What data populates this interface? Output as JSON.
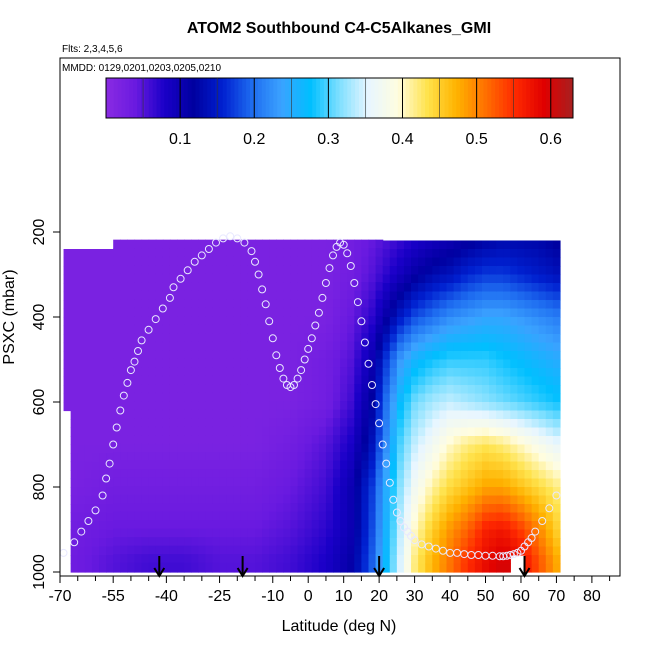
{
  "chart_data": {
    "type": "heatmap",
    "title": "ATOM2 Southbound C4-C5Alkanes_GMI",
    "flights_label": "Flts: 2,3,4,5,6",
    "mmdd_label": "MMDD: 0129,0201,0203,0205,0210",
    "xlabel": "Latitude (deg N)",
    "ylabel": "PSXC (mbar)",
    "xlim": [
      -70,
      85
    ],
    "ylim": [
      1000,
      0
    ],
    "x_tick_values": [
      -70,
      -55,
      -40,
      -25,
      -10,
      0,
      10,
      20,
      30,
      40,
      50,
      60,
      70,
      80
    ],
    "x_tick_labels": [
      "-70",
      "-55",
      "-40",
      "-25",
      "-10",
      "0",
      "10",
      "20",
      "30",
      "40",
      "50",
      "60",
      "70",
      "80"
    ],
    "x_minor_ticks": [
      -65,
      -60,
      -50,
      -45,
      -35,
      -30,
      -20,
      -15,
      -5,
      5,
      15,
      25,
      35,
      45,
      55,
      65,
      75,
      85
    ],
    "y_tick_values": [
      200,
      400,
      600,
      800,
      1000
    ],
    "y_tick_labels": [
      "200",
      "400",
      "600",
      "800",
      "1000"
    ],
    "colorbar": {
      "range": [
        0,
        0.63
      ],
      "tick_values": [
        0.1,
        0.2,
        0.3,
        0.4,
        0.5,
        0.6
      ],
      "tick_labels": [
        "0.1",
        "0.2",
        "0.3",
        "0.4",
        "0.5",
        "0.6"
      ],
      "colors": [
        "#8a2be2",
        "#6a1ae0",
        "#1a00c8",
        "#0000a0",
        "#0020d0",
        "#1e6cf0",
        "#3ba2ff",
        "#00bfff",
        "#7fdfff",
        "#e8f6ff",
        "#fffde0",
        "#ffe34d",
        "#ffb300",
        "#ff7000",
        "#ff2a00",
        "#e00000",
        "#a82020"
      ]
    },
    "grid": false,
    "field": {
      "latitudes": [
        -69,
        -55,
        -45,
        -35,
        -25,
        -15,
        -5,
        5,
        12,
        18,
        22,
        26,
        30,
        35,
        40,
        45,
        50,
        55,
        60,
        65,
        70
      ],
      "pressures": [
        200,
        300,
        400,
        500,
        600,
        700,
        800,
        900,
        975
      ],
      "values": [
        [
          0.02,
          0.02,
          0.02,
          0.02,
          0.02,
          0.02,
          0.02,
          0.02,
          0.03,
          0.04,
          0.05,
          0.06,
          0.07,
          0.08,
          0.09,
          0.1,
          0.11,
          0.12,
          0.12,
          0.12,
          0.11
        ],
        [
          0.02,
          0.02,
          0.02,
          0.02,
          0.02,
          0.02,
          0.02,
          0.02,
          0.03,
          0.05,
          0.07,
          0.09,
          0.11,
          0.13,
          0.14,
          0.16,
          0.17,
          0.17,
          0.16,
          0.15,
          0.14
        ],
        [
          0.02,
          0.02,
          0.02,
          0.02,
          0.02,
          0.02,
          0.02,
          0.02,
          0.04,
          0.07,
          0.11,
          0.15,
          0.18,
          0.2,
          0.22,
          0.23,
          0.24,
          0.24,
          0.23,
          0.22,
          0.21
        ],
        [
          0.02,
          0.02,
          0.02,
          0.02,
          0.02,
          0.02,
          0.02,
          0.03,
          0.05,
          0.1,
          0.17,
          0.23,
          0.26,
          0.28,
          0.29,
          0.29,
          0.29,
          0.28,
          0.27,
          0.26,
          0.25
        ],
        [
          0.02,
          0.02,
          0.02,
          0.02,
          0.02,
          0.02,
          0.02,
          0.03,
          0.06,
          0.12,
          0.2,
          0.27,
          0.31,
          0.33,
          0.34,
          0.33,
          0.32,
          0.31,
          0.3,
          0.29,
          0.28
        ],
        [
          0.02,
          0.02,
          0.02,
          0.02,
          0.02,
          0.02,
          0.03,
          0.05,
          0.08,
          0.14,
          0.22,
          0.3,
          0.34,
          0.37,
          0.4,
          0.42,
          0.43,
          0.42,
          0.4,
          0.38,
          0.36
        ],
        [
          0.02,
          0.03,
          0.03,
          0.03,
          0.03,
          0.03,
          0.04,
          0.06,
          0.1,
          0.17,
          0.25,
          0.32,
          0.37,
          0.41,
          0.44,
          0.46,
          0.48,
          0.48,
          0.46,
          0.44,
          0.42
        ],
        [
          0.03,
          0.04,
          0.04,
          0.04,
          0.04,
          0.04,
          0.05,
          0.07,
          0.1,
          0.18,
          0.26,
          0.34,
          0.4,
          0.45,
          0.49,
          0.52,
          0.56,
          0.57,
          0.54,
          0.5,
          0.45
        ],
        [
          0.03,
          0.05,
          0.06,
          0.06,
          0.05,
          0.05,
          0.06,
          0.08,
          0.11,
          0.19,
          0.27,
          0.35,
          0.42,
          0.47,
          0.51,
          0.55,
          0.58,
          0.6,
          0.58,
          0.53,
          0.48
        ]
      ]
    },
    "flight_tracks": {
      "latitudes": [
        -69,
        -66,
        -64,
        -62,
        -60,
        -58,
        -57,
        -56,
        -55,
        -54,
        -53,
        -52,
        -51,
        -50,
        -49,
        -48,
        -47,
        -45,
        -43,
        -41,
        -39,
        -38,
        -36,
        -34,
        -32,
        -30,
        -28,
        -26,
        -24,
        -22,
        -20,
        -18,
        -16,
        -15,
        -14,
        -13,
        -12,
        -11,
        -10,
        -9,
        -8,
        -7,
        -6,
        -5,
        -4,
        -3,
        -2,
        -1,
        0,
        1,
        2,
        3,
        4,
        5,
        6,
        7,
        8,
        9,
        10,
        11,
        12,
        13,
        14,
        15,
        16,
        17,
        18,
        19,
        20,
        21,
        22,
        23,
        24,
        25,
        26,
        27,
        28,
        29,
        30,
        32,
        34,
        36,
        38,
        40,
        42,
        44,
        46,
        48,
        50,
        52,
        54,
        55,
        56,
        57,
        58,
        59,
        60,
        61,
        62,
        63,
        64,
        66,
        68,
        70
      ],
      "pressures": [
        955,
        930,
        905,
        880,
        855,
        820,
        780,
        745,
        700,
        660,
        620,
        585,
        555,
        525,
        505,
        480,
        455,
        430,
        405,
        380,
        355,
        330,
        310,
        290,
        270,
        255,
        240,
        225,
        215,
        210,
        215,
        225,
        245,
        270,
        300,
        335,
        370,
        410,
        450,
        490,
        520,
        545,
        560,
        565,
        560,
        545,
        525,
        500,
        475,
        450,
        420,
        390,
        355,
        320,
        285,
        255,
        235,
        225,
        230,
        250,
        280,
        320,
        365,
        410,
        460,
        510,
        560,
        605,
        650,
        700,
        745,
        790,
        830,
        860,
        880,
        895,
        905,
        915,
        925,
        935,
        940,
        945,
        950,
        955,
        955,
        958,
        960,
        960,
        962,
        962,
        963,
        963,
        962,
        960,
        958,
        955,
        950,
        940,
        930,
        920,
        905,
        880,
        850,
        820
      ]
    },
    "descent_arrows_lat": [
      -42,
      -18.5,
      20,
      61
    ]
  }
}
